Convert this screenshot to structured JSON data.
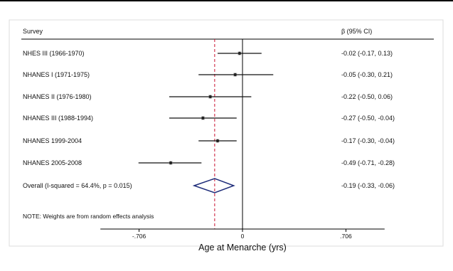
{
  "chart_data": {
    "type": "forest",
    "column_headers": {
      "study": "Survey",
      "estimate": "β (95% CI)"
    },
    "rows": [
      {
        "label": "NHES III (1966-1970)",
        "est": -0.02,
        "lo": -0.17,
        "hi": 0.13,
        "ci_text": "-0.02 (-0.17, 0.13)"
      },
      {
        "label": "NHANES I (1971-1975)",
        "est": -0.05,
        "lo": -0.3,
        "hi": 0.21,
        "ci_text": "-0.05 (-0.30, 0.21)"
      },
      {
        "label": "NHANES II (1976-1980)",
        "est": -0.22,
        "lo": -0.5,
        "hi": 0.06,
        "ci_text": "-0.22 (-0.50, 0.06)"
      },
      {
        "label": "NHANES III (1988-1994)",
        "est": -0.27,
        "lo": -0.5,
        "hi": -0.04,
        "ci_text": "-0.27 (-0.50, -0.04)"
      },
      {
        "label": "NHANES 1999-2004",
        "est": -0.17,
        "lo": -0.3,
        "hi": -0.04,
        "ci_text": "-0.17 (-0.30, -0.04)"
      },
      {
        "label": "NHANES 2005-2008",
        "est": -0.49,
        "lo": -0.71,
        "hi": -0.28,
        "ci_text": "-0.49 (-0.71, -0.28)"
      }
    ],
    "overall": {
      "label": "Overall  (I-squared = 64.4%, p = 0.015)",
      "est": -0.19,
      "lo": -0.33,
      "hi": -0.06,
      "ci_text": "-0.19 (-0.33, -0.06)"
    },
    "note": "NOTE: Weights are from random effects analysis",
    "x_ticks": [
      {
        "value": -0.706,
        "label": "-.706"
      },
      {
        "value": 0,
        "label": "0"
      },
      {
        "value": 0.706,
        "label": ".706"
      }
    ],
    "xlabel": "Age at Menarche (yrs)",
    "xlim": [
      -0.97,
      0.97
    ],
    "null_line": 0,
    "overall_line": -0.19,
    "colors": {
      "marker": "#222222",
      "ci_line": "#111111",
      "diamond": "#1f2d7a",
      "overall_line": "#c8102e",
      "axis": "#000000"
    }
  }
}
